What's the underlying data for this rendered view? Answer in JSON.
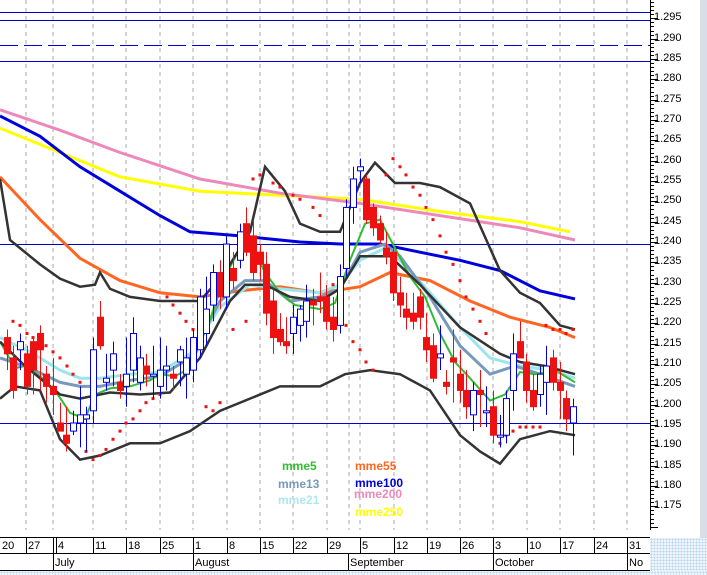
{
  "chart_data": {
    "type": "candlestick",
    "title": "",
    "instrument_hint": "EUR/USD-style daily price chart",
    "xlabel": "",
    "ylabel": "",
    "ylim": [
      1.17,
      1.3
    ],
    "y_ticks": [
      "1.295",
      "1.290",
      "1.285",
      "1.280",
      "1.275",
      "1.270",
      "1.265",
      "1.260",
      "1.255",
      "1.250",
      "1.245",
      "1.240",
      "1.235",
      "1.230",
      "1.225",
      "1.220",
      "1.215",
      "1.210",
      "1.205",
      "1.200",
      "1.195",
      "1.190",
      "1.185",
      "1.180",
      "1.175"
    ],
    "x_week_ticks": [
      "20",
      "27",
      "4",
      "11",
      "18",
      "25",
      "1",
      "8",
      "15",
      "22",
      "29",
      "5",
      "12",
      "19",
      "26",
      "3",
      "10",
      "17",
      "24",
      "31"
    ],
    "x_month_labels": [
      "July",
      "August",
      "September",
      "October",
      "No"
    ],
    "grid": {
      "vertical": "dashed",
      "horizontal": "none"
    },
    "horizontal_lines": [
      {
        "value": 1.2965,
        "style": "solid",
        "color": "#0000cc"
      },
      {
        "value": 1.2945,
        "style": "solid",
        "color": "#0000cc"
      },
      {
        "value": 1.2885,
        "style": "dashed",
        "color": "#0000cc"
      },
      {
        "value": 1.2845,
        "style": "solid",
        "color": "#0000cc"
      },
      {
        "value": 1.2395,
        "style": "solid",
        "color": "#0000cc"
      },
      {
        "value": 1.1955,
        "style": "solid",
        "color": "#0000cc"
      }
    ],
    "legend": [
      {
        "name": "mme5",
        "color": "#33bb33"
      },
      {
        "name": "mme13",
        "color": "#7799bb"
      },
      {
        "name": "mme21",
        "color": "#99e6ee"
      },
      {
        "name": "mme55",
        "color": "#ff6622"
      },
      {
        "name": "mme100",
        "color": "#0000dd"
      },
      {
        "name": "mme200",
        "color": "#ee88bb"
      },
      {
        "name": "mme250",
        "color": "#ffff00"
      }
    ],
    "series": [
      {
        "name": "mme250",
        "color": "#ffff00",
        "points": [
          [
            0,
            1.268
          ],
          [
            60,
            1.262
          ],
          [
            120,
            1.256
          ],
          [
            200,
            1.2525
          ],
          [
            280,
            1.2515
          ],
          [
            360,
            1.2505
          ],
          [
            440,
            1.2475
          ],
          [
            520,
            1.245
          ],
          [
            570,
            1.2425
          ]
        ]
      },
      {
        "name": "mme200",
        "color": "#ee88bb",
        "points": [
          [
            0,
            1.2725
          ],
          [
            60,
            1.2675
          ],
          [
            120,
            1.262
          ],
          [
            200,
            1.2555
          ],
          [
            280,
            1.252
          ],
          [
            360,
            1.2495
          ],
          [
            440,
            1.2465
          ],
          [
            520,
            1.2435
          ],
          [
            575,
            1.2405
          ]
        ]
      },
      {
        "name": "mme100",
        "color": "#0000dd",
        "points": [
          [
            0,
            1.271
          ],
          [
            40,
            1.266
          ],
          [
            80,
            1.2585
          ],
          [
            120,
            1.2525
          ],
          [
            160,
            1.2465
          ],
          [
            190,
            1.2425
          ],
          [
            240,
            1.2415
          ],
          [
            300,
            1.24
          ],
          [
            340,
            1.2395
          ],
          [
            380,
            1.2395
          ],
          [
            420,
            1.2375
          ],
          [
            460,
            1.2355
          ],
          [
            500,
            1.233
          ],
          [
            540,
            1.228
          ],
          [
            575,
            1.226
          ]
        ]
      },
      {
        "name": "mme55",
        "color": "#ff6622",
        "points": [
          [
            0,
            1.256
          ],
          [
            40,
            1.2455
          ],
          [
            80,
            1.236
          ],
          [
            120,
            1.2305
          ],
          [
            160,
            1.2275
          ],
          [
            200,
            1.2265
          ],
          [
            240,
            1.228
          ],
          [
            280,
            1.229
          ],
          [
            320,
            1.2275
          ],
          [
            360,
            1.229
          ],
          [
            390,
            1.2325
          ],
          [
            430,
            1.2305
          ],
          [
            470,
            1.2255
          ],
          [
            510,
            1.2215
          ],
          [
            550,
            1.219
          ],
          [
            575,
            1.2165
          ]
        ]
      }
    ],
    "value_range_visible_candles": {
      "low": 1.1865,
      "high": 1.2605
    },
    "indicators": [
      "Bollinger-style envelopes (black)",
      "Parabolic SAR (red dots)",
      "candlesticks blue=up red=down"
    ]
  },
  "axis": {
    "y_labels": [
      "1.295",
      "1.290",
      "1.285",
      "1.280",
      "1.275",
      "1.270",
      "1.265",
      "1.260",
      "1.255",
      "1.250",
      "1.245",
      "1.240",
      "1.235",
      "1.230",
      "1.225",
      "1.220",
      "1.215",
      "1.210",
      "1.205",
      "1.200",
      "1.195",
      "1.190",
      "1.185",
      "1.180",
      "1.175"
    ],
    "x_weeks": [
      "20",
      "27",
      "4",
      "11",
      "18",
      "25",
      "1",
      "8",
      "15",
      "22",
      "29",
      "5",
      "12",
      "19",
      "26",
      "3",
      "10",
      "17",
      "24",
      "31"
    ],
    "x_months": [
      "July",
      "August",
      "September",
      "October",
      "No"
    ]
  },
  "legend": {
    "mme5": "mme5",
    "mme13": "mme13",
    "mme21": "mme21",
    "mme55": "mme55",
    "mme100": "mme100",
    "mme200": "mme200",
    "mme250": "mme250"
  }
}
